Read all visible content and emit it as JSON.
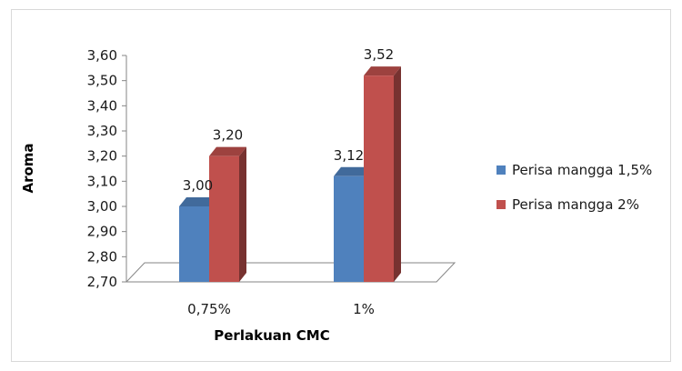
{
  "chart_data": {
    "type": "bar",
    "style": "3d-clustered-column",
    "title": "",
    "xlabel": "Perlakuan CMC",
    "ylabel": "Aroma",
    "categories": [
      "0,75%",
      "1%"
    ],
    "series": [
      {
        "name": "Perisa mangga 1,5%",
        "values": [
          3.0,
          3.12
        ],
        "labels": [
          "3,00",
          "3,12"
        ],
        "color": "#4f81bd"
      },
      {
        "name": "Perisa mangga 2%",
        "values": [
          3.2,
          3.52
        ],
        "labels": [
          "3,20",
          "3,52"
        ],
        "color": "#c0504d"
      }
    ],
    "ylim": [
      2.7,
      3.6
    ],
    "yticks": [
      "2,70",
      "2,80",
      "2,90",
      "3,00",
      "3,10",
      "3,20",
      "3,30",
      "3,40",
      "3,50",
      "3,60"
    ],
    "grid": false,
    "legend_position": "right"
  }
}
